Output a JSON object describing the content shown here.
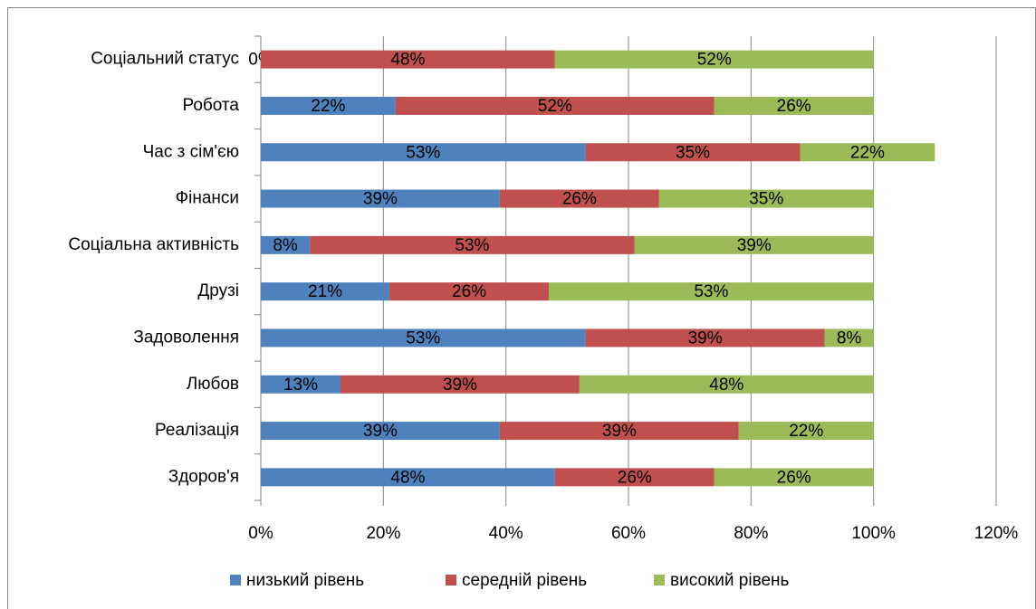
{
  "chart_data": {
    "type": "stacked-bar",
    "orientation": "horizontal",
    "categories": [
      "Соціальний статус",
      "Робота",
      "Час з сім'єю",
      "Фінанси",
      "Соціальна активність",
      "Друзі",
      "Задоволення",
      "Любов",
      "Реалізація",
      "Здоров'я"
    ],
    "series": [
      {
        "name": "низький рівень",
        "color": "#4f81bd",
        "values": [
          0,
          22,
          53,
          39,
          8,
          21,
          53,
          13,
          39,
          48
        ],
        "value_labels": [
          "0%",
          "22%",
          "53%",
          "39%",
          "8%",
          "21%",
          "53%",
          "13%",
          "39%",
          "48%"
        ]
      },
      {
        "name": "середній рівень",
        "color": "#c0504d",
        "values": [
          48,
          52,
          35,
          26,
          53,
          26,
          39,
          39,
          39,
          26
        ],
        "value_labels": [
          "48%",
          "52%",
          "35%",
          "26%",
          "53%",
          "26%",
          "39%",
          "39%",
          "39%",
          "26%"
        ]
      },
      {
        "name": "високий рівень",
        "color": "#9bbb59",
        "values": [
          52,
          26,
          22,
          35,
          39,
          53,
          8,
          48,
          22,
          26
        ],
        "value_labels": [
          "52%",
          "26%",
          "22%",
          "35%",
          "39%",
          "53%",
          "8%",
          "48%",
          "22%",
          "26%"
        ]
      }
    ],
    "xlim": [
      0,
      120
    ],
    "xticks": [
      {
        "value": 0,
        "label": "0%"
      },
      {
        "value": 20,
        "label": "20%"
      },
      {
        "value": 40,
        "label": "40%"
      },
      {
        "value": 60,
        "label": "60%"
      },
      {
        "value": 80,
        "label": "80%"
      },
      {
        "value": 100,
        "label": "100%"
      },
      {
        "value": 120,
        "label": "120%"
      }
    ],
    "grid": true,
    "legend": "bottom"
  }
}
